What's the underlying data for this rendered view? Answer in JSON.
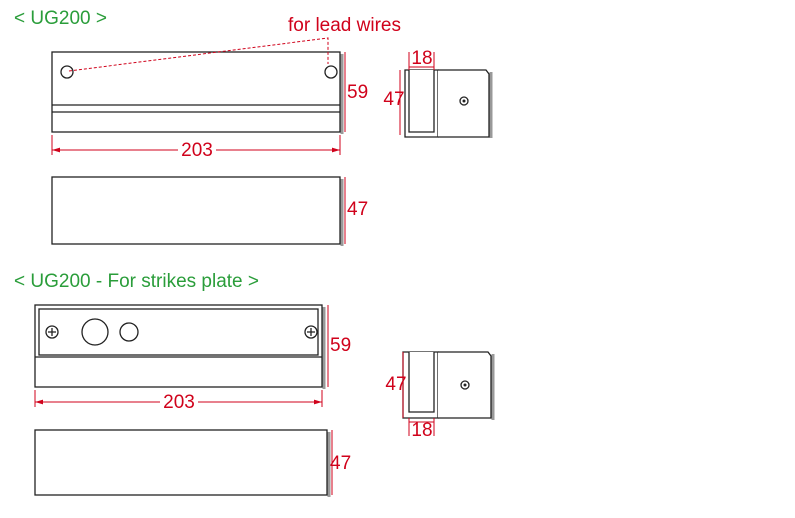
{
  "sections": [
    {
      "title": "< UG200 >",
      "annotation": "for lead wires",
      "front": {
        "width": "203",
        "height": "59"
      },
      "side": {
        "height": "47",
        "depth": "18"
      },
      "bottom": {
        "height": "47"
      }
    },
    {
      "title": "< UG200 - For strikes plate >",
      "front": {
        "width": "203",
        "height": "59"
      },
      "side": {
        "height": "47",
        "depth": "18"
      },
      "bottom": {
        "height": "47"
      }
    }
  ]
}
